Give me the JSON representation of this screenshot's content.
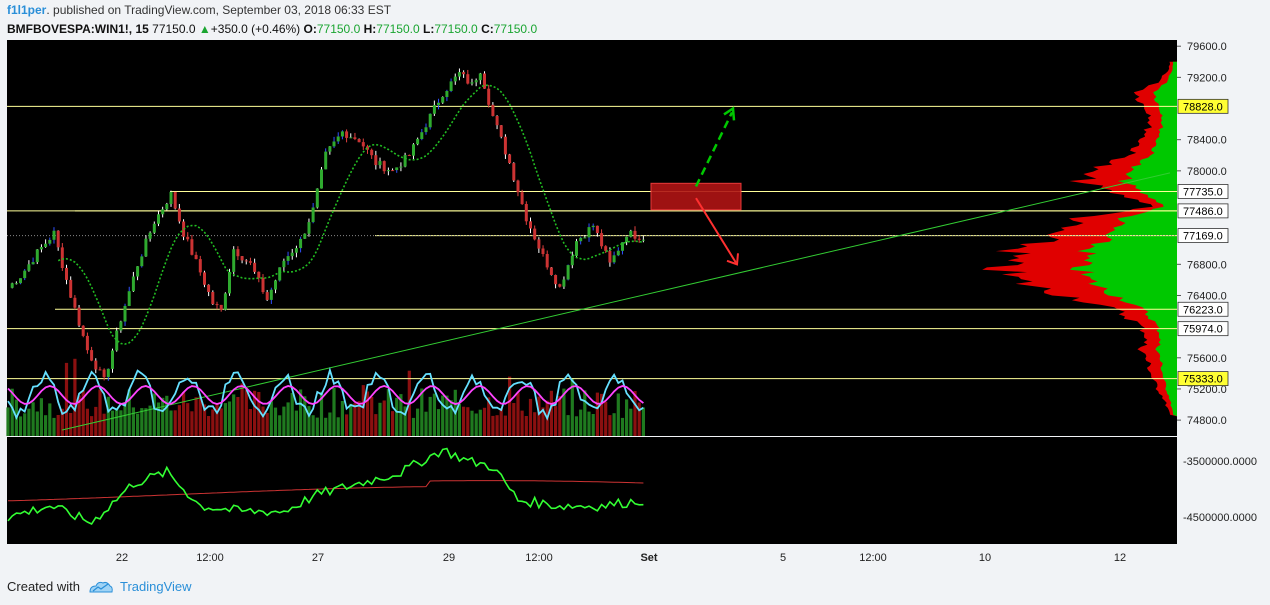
{
  "header": {
    "author": "f1l1per",
    "published": ". published on TradingView.com, September 03, 2018 06:33 EST",
    "symbol": "BMFBOVESPA:WIN1!, 15",
    "price": "77150.0",
    "change": "+350.0 (+0.46%)",
    "o_label": "O:",
    "o_value": "77150.0",
    "h_label": "H:",
    "h_value": "77150.0",
    "l_label": "L:",
    "l_value": "77150.0",
    "c_label": "C:",
    "c_value": "77150.0"
  },
  "footer": {
    "created_with": "Created with",
    "brand": "TradingView"
  },
  "colors": {
    "background": "#000000",
    "up": "#00c800",
    "down": "#e00000",
    "accent_blue": "#2a8fd8",
    "hline": "#ffff99",
    "trendline": "#33cc33",
    "ma": "#22bb22",
    "volume_ma": "#ff44ff",
    "oscillator": "#66e0ff",
    "obv": "#33ff33",
    "obv_ma": "#cc3333",
    "zone": "#b01515"
  },
  "chart_data": {
    "type": "candlestick",
    "price_axis": {
      "range": [
        74700,
        79700
      ],
      "ticks": [
        "79600.0",
        "79200.0",
        "78400.0",
        "78000.0",
        "76800.0",
        "76400.0",
        "75600.0",
        "75200.0",
        "74800.0"
      ]
    },
    "price_markers": [
      {
        "label": "78828.0",
        "value": 78828,
        "style": "yellow"
      },
      {
        "label": "77735.0",
        "value": 77735,
        "style": "white"
      },
      {
        "label": "77486.0",
        "value": 77486,
        "style": "white"
      },
      {
        "label": "77169.0",
        "value": 77169,
        "style": "white"
      },
      {
        "label": "76223.0",
        "value": 76223,
        "style": "white"
      },
      {
        "label": "75974.0",
        "value": 75974,
        "style": "white"
      },
      {
        "label": "75333.0",
        "value": 75333,
        "style": "yellow"
      }
    ],
    "horizontal_levels": [
      78828,
      77735,
      77486,
      77169,
      76223,
      75974,
      75333
    ],
    "x_axis": {
      "ticks": [
        "22",
        "12:00",
        "27",
        "29",
        "12:00",
        "Set",
        "5",
        "12:00",
        "10",
        "12"
      ]
    },
    "series": [
      {
        "name": "price_path",
        "points": [
          [
            0,
            76500
          ],
          [
            3,
            76650
          ],
          [
            7,
            76950
          ],
          [
            11,
            77200
          ],
          [
            15,
            76400
          ],
          [
            19,
            75700
          ],
          [
            23,
            75300
          ],
          [
            27,
            76100
          ],
          [
            31,
            76800
          ],
          [
            35,
            77350
          ],
          [
            39,
            77700
          ],
          [
            42,
            77200
          ],
          [
            46,
            76700
          ],
          [
            49,
            76300
          ],
          [
            51,
            76200
          ],
          [
            54,
            77000
          ],
          [
            58,
            76800
          ],
          [
            62,
            76350
          ],
          [
            66,
            76850
          ],
          [
            70,
            77100
          ],
          [
            73,
            77500
          ],
          [
            76,
            78200
          ],
          [
            80,
            78500
          ],
          [
            84,
            78400
          ],
          [
            88,
            78100
          ],
          [
            92,
            78000
          ],
          [
            96,
            78200
          ],
          [
            100,
            78600
          ],
          [
            104,
            79000
          ],
          [
            108,
            79250
          ],
          [
            111,
            79100
          ],
          [
            113,
            79300
          ],
          [
            116,
            78700
          ],
          [
            120,
            78100
          ],
          [
            124,
            77400
          ],
          [
            128,
            76900
          ],
          [
            132,
            76500
          ],
          [
            136,
            77100
          ],
          [
            140,
            77300
          ],
          [
            144,
            76800
          ],
          [
            148,
            77200
          ],
          [
            152,
            77150
          ]
        ]
      },
      {
        "name": "obv",
        "points": [
          [
            0,
            -4.5
          ],
          [
            10,
            -4.3
          ],
          [
            20,
            -4.6
          ],
          [
            30,
            -3.9
          ],
          [
            38,
            -3.7
          ],
          [
            46,
            -4.3
          ],
          [
            56,
            -4.4
          ],
          [
            66,
            -4.4
          ],
          [
            74,
            -4.1
          ],
          [
            84,
            -3.9
          ],
          [
            94,
            -3.7
          ],
          [
            104,
            -3.3
          ],
          [
            110,
            -3.5
          ],
          [
            116,
            -3.6
          ],
          [
            122,
            -4.2
          ],
          [
            132,
            -4.3
          ],
          [
            142,
            -4.3
          ],
          [
            152,
            -4.2
          ]
        ]
      }
    ],
    "obv_axis": {
      "ticks": [
        "-3500000.0000",
        "-4500000.0000"
      ]
    },
    "zone": {
      "low": 77500,
      "high": 77840
    },
    "projections": [
      {
        "direction": "up",
        "target": 78750,
        "style": "dashed"
      },
      {
        "direction": "down",
        "target": 76800,
        "style": "solid"
      }
    ]
  }
}
